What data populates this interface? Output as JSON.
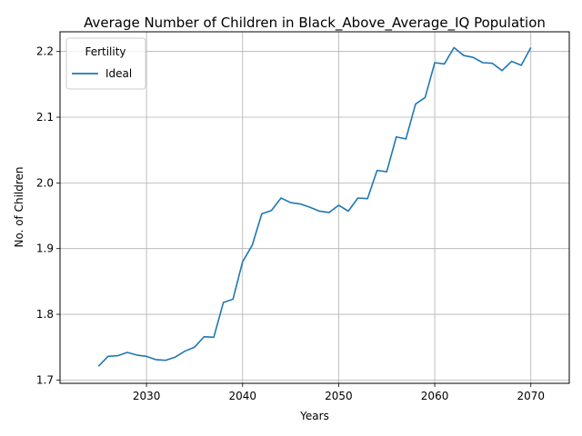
{
  "chart_data": {
    "type": "line",
    "title": "Average Number of Children in Black_Above_Average_IQ Population",
    "xlabel": "Years",
    "ylabel": "No. of Children",
    "xlim": [
      2021,
      2074
    ],
    "ylim": [
      1.695,
      2.23
    ],
    "x_ticks": [
      2030,
      2040,
      2050,
      2060,
      2070
    ],
    "y_ticks": [
      1.7,
      1.8,
      1.9,
      2.0,
      2.1,
      2.2
    ],
    "x_tick_labels": [
      "2030",
      "2040",
      "2050",
      "2060",
      "2070"
    ],
    "y_tick_labels": [
      "1.7",
      "1.8",
      "1.9",
      "2.0",
      "2.1",
      "2.2"
    ],
    "grid": true,
    "legend": {
      "title": "Fertility",
      "placement": "top-left"
    },
    "series": [
      {
        "name": "Ideal",
        "color": "#1f77b4",
        "x": [
          2025,
          2026,
          2027,
          2028,
          2029,
          2030,
          2031,
          2032,
          2033,
          2034,
          2035,
          2036,
          2037,
          2038,
          2039,
          2040,
          2041,
          2042,
          2043,
          2044,
          2045,
          2046,
          2047,
          2048,
          2049,
          2050,
          2051,
          2052,
          2053,
          2054,
          2055,
          2056,
          2057,
          2058,
          2059,
          2060,
          2061,
          2062,
          2063,
          2064,
          2065,
          2066,
          2067,
          2068,
          2069,
          2070
        ],
        "y": [
          1.721,
          1.736,
          1.737,
          1.742,
          1.738,
          1.736,
          1.731,
          1.73,
          1.735,
          1.744,
          1.75,
          1.766,
          1.765,
          1.818,
          1.823,
          1.88,
          1.905,
          1.953,
          1.958,
          1.977,
          1.97,
          1.968,
          1.963,
          1.957,
          1.955,
          1.966,
          1.957,
          1.977,
          1.976,
          2.019,
          2.017,
          2.07,
          2.067,
          2.12,
          2.13,
          2.183,
          2.181,
          2.206,
          2.194,
          2.191,
          2.183,
          2.182,
          2.171,
          2.185,
          2.179,
          2.206
        ]
      }
    ]
  }
}
